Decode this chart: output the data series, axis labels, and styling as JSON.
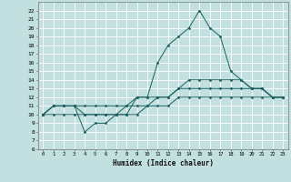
{
  "xlabel": "Humidex (Indice chaleur)",
  "bg_color": "#c2e0e0",
  "grid_color": "#ffffff",
  "line_color": "#1a6060",
  "xlim": [
    -0.5,
    23.5
  ],
  "ylim": [
    6,
    23
  ],
  "xticks": [
    0,
    1,
    2,
    3,
    4,
    5,
    6,
    7,
    8,
    9,
    10,
    11,
    12,
    13,
    14,
    15,
    16,
    17,
    18,
    19,
    20,
    21,
    22,
    23
  ],
  "yticks": [
    6,
    7,
    8,
    9,
    10,
    11,
    12,
    13,
    14,
    15,
    16,
    17,
    18,
    19,
    20,
    21,
    22
  ],
  "lines": [
    {
      "x": [
        0,
        1,
        2,
        3,
        4,
        5,
        6,
        7,
        8,
        9,
        10,
        11,
        12,
        13,
        14,
        15,
        16,
        17,
        18,
        19,
        20,
        21,
        22,
        23
      ],
      "y": [
        10,
        11,
        11,
        11,
        8,
        9,
        9,
        10,
        10,
        12,
        12,
        16,
        18,
        19,
        20,
        22,
        20,
        19,
        15,
        14,
        13,
        13,
        12,
        12
      ]
    },
    {
      "x": [
        0,
        1,
        2,
        3,
        4,
        5,
        6,
        7,
        8,
        9,
        10,
        11,
        12,
        13,
        14,
        15,
        16,
        17,
        18,
        19,
        20,
        21,
        22,
        23
      ],
      "y": [
        10,
        11,
        11,
        11,
        10,
        10,
        10,
        10,
        11,
        11,
        11,
        12,
        12,
        13,
        14,
        14,
        14,
        14,
        14,
        14,
        13,
        13,
        12,
        12
      ]
    },
    {
      "x": [
        0,
        1,
        2,
        3,
        4,
        5,
        6,
        7,
        8,
        9,
        10,
        11,
        12,
        13,
        14,
        15,
        16,
        17,
        18,
        19,
        20,
        21,
        22,
        23
      ],
      "y": [
        10,
        11,
        11,
        11,
        11,
        11,
        11,
        11,
        11,
        12,
        12,
        12,
        12,
        13,
        13,
        13,
        13,
        13,
        13,
        13,
        13,
        13,
        12,
        12
      ]
    },
    {
      "x": [
        0,
        1,
        2,
        3,
        4,
        5,
        6,
        7,
        8,
        9,
        10,
        11,
        12,
        13,
        14,
        15,
        16,
        17,
        18,
        19,
        20,
        21,
        22,
        23
      ],
      "y": [
        10,
        10,
        10,
        10,
        10,
        10,
        10,
        10,
        10,
        10,
        11,
        11,
        11,
        12,
        12,
        12,
        12,
        12,
        12,
        12,
        12,
        12,
        12,
        12
      ]
    }
  ]
}
